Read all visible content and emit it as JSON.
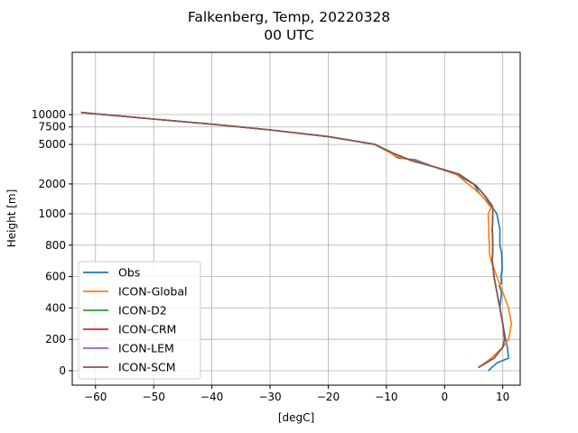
{
  "chart_data": {
    "type": "line",
    "title": "Falkenberg, Temp, 20220328",
    "subtitle": "00 UTC",
    "xlabel": "[degC]",
    "ylabel": "Height [m]",
    "xlim": [
      -64,
      13
    ],
    "xticks": [
      -60,
      -50,
      -40,
      -30,
      -20,
      -10,
      0,
      10
    ],
    "xtick_labels": [
      "−60",
      "−50",
      "−40",
      "−30",
      "−20",
      "−10",
      "0",
      "10"
    ],
    "yticks": [
      0,
      200,
      400,
      600,
      800,
      1000,
      2000,
      5000,
      7500,
      10000
    ],
    "ytick_labels": [
      "0",
      "200",
      "400",
      "600",
      "800",
      "1000",
      "2000",
      "5000",
      "7500",
      "10000"
    ],
    "y_scale": "piecewise: linear 0-1000 m, log above 1000 m",
    "grid": true,
    "legend_position": "lower-left",
    "series": [
      {
        "name": "Obs",
        "color": "#1f77b4",
        "x": [
          7.5,
          9,
          11,
          10.8,
          10.5,
          10,
          9.5,
          9.8,
          9.4,
          9.8,
          9.7,
          9.9,
          9.8,
          9.5,
          9.5,
          9,
          8.5,
          7.5,
          6,
          5,
          2,
          -2,
          -5,
          -8,
          -8.5,
          -8.5,
          -12,
          -20,
          -30,
          -40,
          -50,
          -62.5
        ],
        "y": [
          0,
          50,
          80,
          150,
          200,
          300,
          400,
          500,
          540,
          560,
          600,
          650,
          750,
          800,
          900,
          1000,
          1100,
          1300,
          1600,
          2000,
          2500,
          3000,
          3500,
          3650,
          3800,
          4000,
          5000,
          6000,
          7000,
          8000,
          9000,
          10500
        ]
      },
      {
        "name": "ICON-Global",
        "color": "#ff7f0e",
        "x": [
          5.8,
          8,
          10,
          11,
          11.5,
          11,
          10,
          9,
          8,
          7.7,
          7.7,
          7.6,
          7.6,
          7.5,
          7.7,
          7.8,
          8,
          6.5,
          5,
          2,
          -2,
          -5,
          -8.5,
          -9,
          -12,
          -20,
          -30,
          -40,
          -50,
          -62.5
        ],
        "y": [
          20,
          80,
          150,
          200,
          300,
          400,
          500,
          600,
          700,
          750,
          800,
          850,
          900,
          1000,
          1050,
          1100,
          1150,
          1500,
          1800,
          2500,
          3000,
          3400,
          3800,
          4000,
          5000,
          6000,
          7000,
          8000,
          9000,
          10500
        ]
      },
      {
        "name": "ICON-D2",
        "color": "#2ca02c",
        "x": [
          5.8,
          8.5,
          10,
          10.3,
          10,
          9.5,
          9,
          8.5,
          8.2,
          8.3,
          8.2,
          8.3,
          8.3,
          8.2,
          7,
          5.5,
          2.5,
          -2,
          -5.5,
          -8.5,
          -12,
          -20,
          -30,
          -40,
          -50,
          -62.5
        ],
        "y": [
          20,
          80,
          150,
          200,
          300,
          400,
          500,
          600,
          700,
          800,
          900,
          1000,
          1100,
          1200,
          1500,
          1900,
          2500,
          3000,
          3400,
          4000,
          5000,
          6000,
          7000,
          8000,
          9000,
          10500
        ]
      },
      {
        "name": "ICON-CRM",
        "color": "#d62728",
        "x": [
          5.8,
          8.5,
          10,
          10.3,
          10,
          9.5,
          9,
          8.5,
          8.2,
          8.3,
          8.2,
          8.3,
          8.3,
          8.2,
          7,
          5.5,
          2.5,
          -2,
          -5.5,
          -8.5,
          -12,
          -20,
          -30,
          -40,
          -50,
          -62.5
        ],
        "y": [
          20,
          80,
          150,
          200,
          300,
          400,
          500,
          600,
          700,
          800,
          900,
          1000,
          1100,
          1200,
          1500,
          1900,
          2500,
          3000,
          3400,
          4000,
          5000,
          6000,
          7000,
          8000,
          9000,
          10500
        ]
      },
      {
        "name": "ICON-LEM",
        "color": "#9467bd",
        "x": [
          5.8,
          8.5,
          10,
          10.3,
          10,
          9.5,
          9,
          8.5,
          8.2,
          8.3,
          8.2,
          8.3,
          8.3,
          8.2,
          7,
          5.5,
          2.5,
          -2,
          -5.5,
          -8.5,
          -12,
          -20,
          -30,
          -40,
          -50,
          -62.5
        ],
        "y": [
          20,
          80,
          150,
          200,
          300,
          400,
          500,
          600,
          700,
          800,
          900,
          1000,
          1100,
          1200,
          1500,
          1900,
          2500,
          3000,
          3400,
          4000,
          5000,
          6000,
          7000,
          8000,
          9000,
          10500
        ]
      },
      {
        "name": "ICON-SCM",
        "color": "#8c564b",
        "x": [
          5.8,
          8.5,
          10,
          10.3,
          10,
          9.5,
          9,
          8.5,
          8.2,
          8.3,
          8.2,
          8.3,
          8.3,
          8.2,
          7,
          5.5,
          2.5,
          -2,
          -5.5,
          -8.5,
          -12,
          -20,
          -30,
          -40,
          -50,
          -62.5
        ],
        "y": [
          20,
          80,
          150,
          200,
          300,
          400,
          500,
          600,
          700,
          800,
          900,
          1000,
          1100,
          1200,
          1500,
          1900,
          2500,
          3000,
          3400,
          4000,
          5000,
          6000,
          7000,
          8000,
          9000,
          10500
        ]
      }
    ]
  }
}
